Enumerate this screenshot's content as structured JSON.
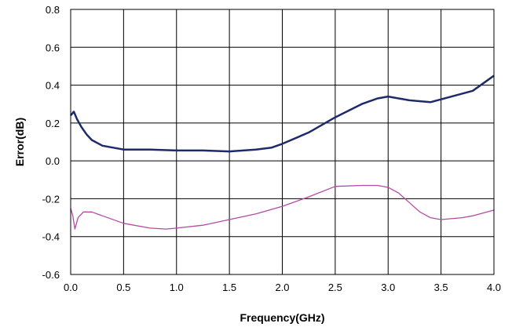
{
  "chart_data": {
    "type": "line",
    "title": "",
    "xlabel": "Frequency(GHz)",
    "ylabel": "Error(dB)",
    "xlim": [
      0,
      4.0
    ],
    "ylim": [
      -0.6,
      0.8
    ],
    "grid": true,
    "legend": "none",
    "x_ticks": [
      "0.0",
      "0.5",
      "1.0",
      "1.5",
      "2.0",
      "2.5",
      "3.0",
      "3.5",
      "4.0"
    ],
    "y_ticks": [
      "0.8",
      "0.6",
      "0.4",
      "0.2",
      "0.0",
      "-0.2",
      "-0.4",
      "-0.6"
    ],
    "series": [
      {
        "color": "#1f2a6b",
        "x": [
          0.0,
          0.03,
          0.06,
          0.1,
          0.15,
          0.2,
          0.3,
          0.5,
          0.75,
          1.0,
          1.25,
          1.5,
          1.75,
          1.9,
          2.0,
          2.25,
          2.5,
          2.75,
          2.9,
          3.0,
          3.2,
          3.4,
          3.6,
          3.8,
          3.9,
          4.0
        ],
        "y": [
          0.24,
          0.26,
          0.22,
          0.18,
          0.14,
          0.11,
          0.08,
          0.06,
          0.06,
          0.055,
          0.055,
          0.05,
          0.06,
          0.07,
          0.09,
          0.15,
          0.23,
          0.3,
          0.33,
          0.34,
          0.32,
          0.31,
          0.34,
          0.37,
          0.41,
          0.45
        ]
      },
      {
        "color": "#b44aa3",
        "x": [
          0.0,
          0.02,
          0.04,
          0.07,
          0.12,
          0.2,
          0.3,
          0.5,
          0.75,
          0.9,
          1.0,
          1.25,
          1.5,
          1.75,
          2.0,
          2.25,
          2.5,
          2.75,
          2.9,
          3.0,
          3.1,
          3.2,
          3.3,
          3.4,
          3.5,
          3.7,
          3.8,
          4.0
        ],
        "y": [
          -0.25,
          -0.29,
          -0.36,
          -0.3,
          -0.27,
          -0.27,
          -0.29,
          -0.33,
          -0.355,
          -0.36,
          -0.355,
          -0.34,
          -0.31,
          -0.28,
          -0.24,
          -0.19,
          -0.135,
          -0.13,
          -0.13,
          -0.14,
          -0.17,
          -0.22,
          -0.27,
          -0.3,
          -0.31,
          -0.3,
          -0.29,
          -0.26
        ]
      }
    ]
  }
}
